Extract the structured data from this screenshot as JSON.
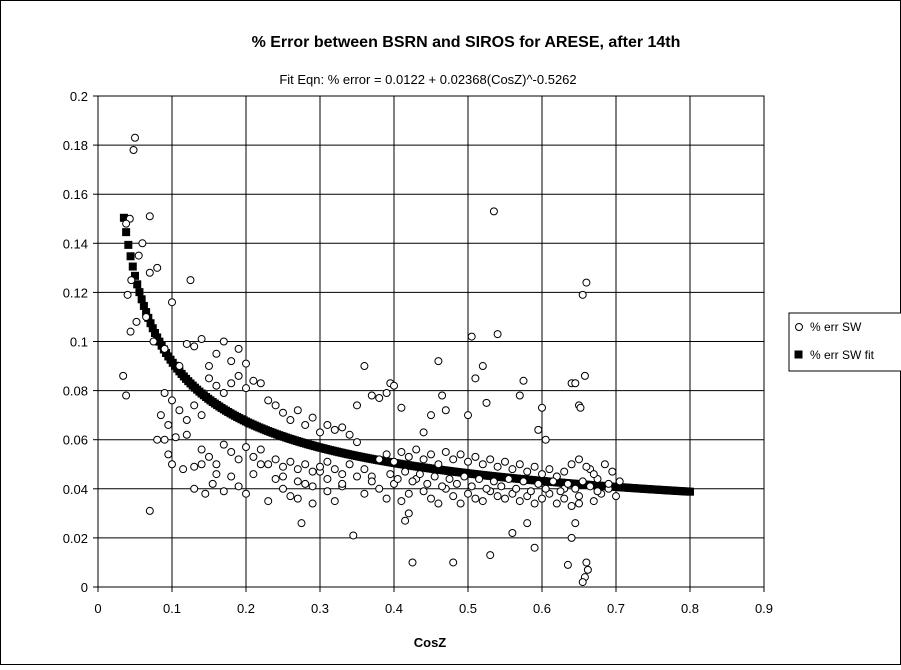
{
  "chart_data": {
    "type": "scatter",
    "title": "% Error between BSRN and SIROS for ARESE, after 14th",
    "subtitle": "Fit Eqn: % error = 0.0122 + 0.02368(CosZ)^-0.5262",
    "xlabel": "CosZ",
    "ylabel": "",
    "xlim": [
      0,
      0.9
    ],
    "ylim": [
      0,
      0.2
    ],
    "xticks": [
      "0",
      "0.1",
      "0.2",
      "0.3",
      "0.4",
      "0.5",
      "0.6",
      "0.7",
      "0.8",
      "0.9"
    ],
    "yticks": [
      "0",
      "0.02",
      "0.04",
      "0.06",
      "0.08",
      "0.1",
      "0.12",
      "0.14",
      "0.16",
      "0.18",
      "0.2"
    ],
    "grid": true,
    "legend_position": "right",
    "series": [
      {
        "name": "% err SW",
        "marker": "open-circle",
        "color": "#000000",
        "points": [
          [
            0.05,
            0.183
          ],
          [
            0.048,
            0.178
          ],
          [
            0.07,
            0.151
          ],
          [
            0.043,
            0.15
          ],
          [
            0.038,
            0.148
          ],
          [
            0.06,
            0.14
          ],
          [
            0.055,
            0.135
          ],
          [
            0.045,
            0.125
          ],
          [
            0.04,
            0.119
          ],
          [
            0.052,
            0.108
          ],
          [
            0.044,
            0.104
          ],
          [
            0.034,
            0.086
          ],
          [
            0.038,
            0.078
          ],
          [
            0.07,
            0.128
          ],
          [
            0.08,
            0.13
          ],
          [
            0.1,
            0.116
          ],
          [
            0.125,
            0.125
          ],
          [
            0.075,
            0.1
          ],
          [
            0.09,
            0.097
          ],
          [
            0.065,
            0.11
          ],
          [
            0.11,
            0.09
          ],
          [
            0.12,
            0.099
          ],
          [
            0.13,
            0.098
          ],
          [
            0.14,
            0.101
          ],
          [
            0.15,
            0.09
          ],
          [
            0.16,
            0.095
          ],
          [
            0.17,
            0.1
          ],
          [
            0.18,
            0.092
          ],
          [
            0.19,
            0.097
          ],
          [
            0.2,
            0.091
          ],
          [
            0.08,
            0.06
          ],
          [
            0.09,
            0.06
          ],
          [
            0.095,
            0.054
          ],
          [
            0.07,
            0.031
          ],
          [
            0.1,
            0.05
          ],
          [
            0.115,
            0.048
          ],
          [
            0.12,
            0.062
          ],
          [
            0.13,
            0.04
          ],
          [
            0.14,
            0.05
          ],
          [
            0.145,
            0.038
          ],
          [
            0.155,
            0.042
          ],
          [
            0.16,
            0.046
          ],
          [
            0.17,
            0.039
          ],
          [
            0.18,
            0.045
          ],
          [
            0.19,
            0.041
          ],
          [
            0.2,
            0.038
          ],
          [
            0.21,
            0.046
          ],
          [
            0.22,
            0.05
          ],
          [
            0.23,
            0.035
          ],
          [
            0.24,
            0.044
          ],
          [
            0.25,
            0.04
          ],
          [
            0.26,
            0.037
          ],
          [
            0.27,
            0.036
          ],
          [
            0.275,
            0.026
          ],
          [
            0.28,
            0.042
          ],
          [
            0.29,
            0.034
          ],
          [
            0.3,
            0.047
          ],
          [
            0.31,
            0.039
          ],
          [
            0.32,
            0.035
          ],
          [
            0.33,
            0.041
          ],
          [
            0.22,
            0.083
          ],
          [
            0.23,
            0.076
          ],
          [
            0.24,
            0.074
          ],
          [
            0.25,
            0.071
          ],
          [
            0.26,
            0.068
          ],
          [
            0.27,
            0.072
          ],
          [
            0.28,
            0.066
          ],
          [
            0.29,
            0.069
          ],
          [
            0.3,
            0.063
          ],
          [
            0.31,
            0.066
          ],
          [
            0.32,
            0.064
          ],
          [
            0.33,
            0.065
          ],
          [
            0.34,
            0.062
          ],
          [
            0.35,
            0.059
          ],
          [
            0.2,
            0.081
          ],
          [
            0.21,
            0.084
          ],
          [
            0.15,
            0.085
          ],
          [
            0.16,
            0.082
          ],
          [
            0.17,
            0.079
          ],
          [
            0.18,
            0.083
          ],
          [
            0.19,
            0.086
          ],
          [
            0.13,
            0.074
          ],
          [
            0.14,
            0.07
          ],
          [
            0.12,
            0.068
          ],
          [
            0.11,
            0.072
          ],
          [
            0.1,
            0.076
          ],
          [
            0.09,
            0.079
          ],
          [
            0.085,
            0.07
          ],
          [
            0.095,
            0.066
          ],
          [
            0.105,
            0.061
          ],
          [
            0.345,
            0.021
          ],
          [
            0.36,
            0.09
          ],
          [
            0.38,
            0.077
          ],
          [
            0.395,
            0.083
          ],
          [
            0.4,
            0.082
          ],
          [
            0.39,
            0.079
          ],
          [
            0.37,
            0.078
          ],
          [
            0.35,
            0.074
          ],
          [
            0.41,
            0.073
          ],
          [
            0.42,
            0.03
          ],
          [
            0.415,
            0.027
          ],
          [
            0.425,
            0.01
          ],
          [
            0.44,
            0.063
          ],
          [
            0.45,
            0.07
          ],
          [
            0.46,
            0.092
          ],
          [
            0.465,
            0.078
          ],
          [
            0.47,
            0.072
          ],
          [
            0.48,
            0.01
          ],
          [
            0.5,
            0.07
          ],
          [
            0.505,
            0.102
          ],
          [
            0.51,
            0.085
          ],
          [
            0.52,
            0.09
          ],
          [
            0.525,
            0.075
          ],
          [
            0.535,
            0.153
          ],
          [
            0.54,
            0.103
          ],
          [
            0.53,
            0.013
          ],
          [
            0.56,
            0.022
          ],
          [
            0.57,
            0.078
          ],
          [
            0.575,
            0.084
          ],
          [
            0.58,
            0.026
          ],
          [
            0.59,
            0.016
          ],
          [
            0.6,
            0.073
          ],
          [
            0.595,
            0.064
          ],
          [
            0.605,
            0.06
          ],
          [
            0.62,
            0.045
          ],
          [
            0.63,
            0.04
          ],
          [
            0.635,
            0.009
          ],
          [
            0.64,
            0.083
          ],
          [
            0.645,
            0.083
          ],
          [
            0.65,
            0.074
          ],
          [
            0.652,
            0.073
          ],
          [
            0.655,
            0.119
          ],
          [
            0.66,
            0.124
          ],
          [
            0.658,
            0.086
          ],
          [
            0.66,
            0.01
          ],
          [
            0.662,
            0.007
          ],
          [
            0.658,
            0.004
          ],
          [
            0.655,
            0.002
          ],
          [
            0.64,
            0.02
          ],
          [
            0.645,
            0.026
          ],
          [
            0.65,
            0.034
          ],
          [
            0.67,
            0.035
          ],
          [
            0.68,
            0.038
          ],
          [
            0.69,
            0.04
          ],
          [
            0.7,
            0.037
          ],
          [
            0.705,
            0.043
          ],
          [
            0.695,
            0.047
          ],
          [
            0.685,
            0.05
          ],
          [
            0.675,
            0.044
          ],
          [
            0.665,
            0.048
          ],
          [
            0.36,
            0.038
          ],
          [
            0.37,
            0.045
          ],
          [
            0.38,
            0.04
          ],
          [
            0.39,
            0.036
          ],
          [
            0.4,
            0.042
          ],
          [
            0.41,
            0.035
          ],
          [
            0.42,
            0.038
          ],
          [
            0.43,
            0.044
          ],
          [
            0.44,
            0.039
          ],
          [
            0.45,
            0.036
          ],
          [
            0.46,
            0.034
          ],
          [
            0.47,
            0.04
          ],
          [
            0.48,
            0.037
          ],
          [
            0.49,
            0.034
          ],
          [
            0.5,
            0.038
          ],
          [
            0.51,
            0.036
          ],
          [
            0.52,
            0.035
          ],
          [
            0.53,
            0.039
          ],
          [
            0.54,
            0.037
          ],
          [
            0.55,
            0.036
          ],
          [
            0.56,
            0.038
          ],
          [
            0.57,
            0.035
          ],
          [
            0.58,
            0.037
          ],
          [
            0.59,
            0.034
          ],
          [
            0.6,
            0.036
          ],
          [
            0.61,
            0.038
          ],
          [
            0.62,
            0.034
          ],
          [
            0.63,
            0.036
          ],
          [
            0.64,
            0.033
          ],
          [
            0.65,
            0.037
          ],
          [
            0.38,
            0.052
          ],
          [
            0.39,
            0.054
          ],
          [
            0.4,
            0.051
          ],
          [
            0.41,
            0.055
          ],
          [
            0.42,
            0.053
          ],
          [
            0.43,
            0.056
          ],
          [
            0.44,
            0.052
          ],
          [
            0.45,
            0.054
          ],
          [
            0.46,
            0.05
          ],
          [
            0.47,
            0.055
          ],
          [
            0.48,
            0.052
          ],
          [
            0.49,
            0.054
          ],
          [
            0.5,
            0.051
          ],
          [
            0.51,
            0.053
          ],
          [
            0.52,
            0.05
          ],
          [
            0.53,
            0.052
          ],
          [
            0.54,
            0.049
          ],
          [
            0.55,
            0.051
          ],
          [
            0.56,
            0.048
          ],
          [
            0.57,
            0.05
          ],
          [
            0.58,
            0.047
          ],
          [
            0.59,
            0.049
          ],
          [
            0.6,
            0.046
          ],
          [
            0.61,
            0.048
          ],
          [
            0.62,
            0.045
          ],
          [
            0.63,
            0.047
          ],
          [
            0.64,
            0.05
          ],
          [
            0.65,
            0.052
          ],
          [
            0.66,
            0.049
          ],
          [
            0.67,
            0.046
          ],
          [
            0.23,
            0.05
          ],
          [
            0.24,
            0.052
          ],
          [
            0.25,
            0.049
          ],
          [
            0.26,
            0.051
          ],
          [
            0.27,
            0.048
          ],
          [
            0.28,
            0.05
          ],
          [
            0.29,
            0.047
          ],
          [
            0.3,
            0.049
          ],
          [
            0.31,
            0.051
          ],
          [
            0.32,
            0.048
          ],
          [
            0.33,
            0.046
          ],
          [
            0.34,
            0.05
          ],
          [
            0.35,
            0.045
          ],
          [
            0.36,
            0.048
          ],
          [
            0.37,
            0.043
          ],
          [
            0.25,
            0.045
          ],
          [
            0.27,
            0.043
          ],
          [
            0.29,
            0.041
          ],
          [
            0.31,
            0.044
          ],
          [
            0.33,
            0.042
          ],
          [
            0.18,
            0.055
          ],
          [
            0.19,
            0.052
          ],
          [
            0.2,
            0.057
          ],
          [
            0.21,
            0.053
          ],
          [
            0.22,
            0.056
          ],
          [
            0.17,
            0.058
          ],
          [
            0.16,
            0.05
          ],
          [
            0.15,
            0.053
          ],
          [
            0.14,
            0.056
          ],
          [
            0.13,
            0.049
          ],
          [
            0.395,
            0.046
          ],
          [
            0.405,
            0.044
          ],
          [
            0.415,
            0.047
          ],
          [
            0.425,
            0.043
          ],
          [
            0.435,
            0.046
          ],
          [
            0.445,
            0.042
          ],
          [
            0.455,
            0.045
          ],
          [
            0.465,
            0.041
          ],
          [
            0.475,
            0.044
          ],
          [
            0.485,
            0.042
          ],
          [
            0.495,
            0.045
          ],
          [
            0.505,
            0.041
          ],
          [
            0.515,
            0.044
          ],
          [
            0.525,
            0.04
          ],
          [
            0.535,
            0.043
          ],
          [
            0.545,
            0.041
          ],
          [
            0.555,
            0.044
          ],
          [
            0.565,
            0.04
          ],
          [
            0.575,
            0.043
          ],
          [
            0.585,
            0.039
          ],
          [
            0.595,
            0.042
          ],
          [
            0.605,
            0.04
          ],
          [
            0.615,
            0.043
          ],
          [
            0.625,
            0.039
          ],
          [
            0.635,
            0.042
          ],
          [
            0.645,
            0.04
          ],
          [
            0.655,
            0.043
          ],
          [
            0.665,
            0.041
          ],
          [
            0.675,
            0.039
          ],
          [
            0.69,
            0.042
          ]
        ]
      },
      {
        "name": "% err SW fit",
        "marker": "filled-square",
        "color": "#000000",
        "equation": {
          "a": 0.0122,
          "b": 0.02368,
          "c": -0.5262
        },
        "x_range": [
          0.035,
          0.8
        ],
        "x_step": 0.003
      }
    ]
  }
}
